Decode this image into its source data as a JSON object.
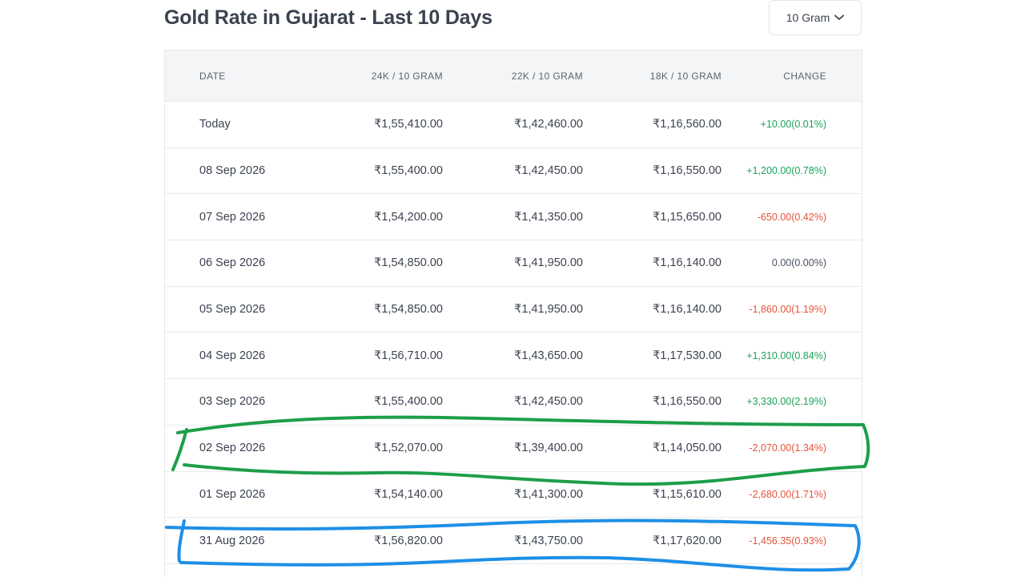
{
  "title": "Gold Rate in Gujarat - Last 10 Days",
  "unit_selector": {
    "selected": "10 Gram",
    "icon": "chevron-down-icon"
  },
  "table": {
    "headers": {
      "date": "DATE",
      "k24": "24K / 10 GRAM",
      "k22": "22K / 10 GRAM",
      "k18": "18K / 10 GRAM",
      "change": "CHANGE"
    },
    "rows": [
      {
        "date": "Today",
        "k24": "₹1,55,410.00",
        "k22": "₹1,42,460.00",
        "k18": "₹1,16,560.00",
        "change": "+10.00(0.01%)",
        "trend": "pos"
      },
      {
        "date": "08 Sep 2026",
        "k24": "₹1,55,400.00",
        "k22": "₹1,42,450.00",
        "k18": "₹1,16,550.00",
        "change": "+1,200.00(0.78%)",
        "trend": "pos"
      },
      {
        "date": "07 Sep 2026",
        "k24": "₹1,54,200.00",
        "k22": "₹1,41,350.00",
        "k18": "₹1,15,650.00",
        "change": "-650.00(0.42%)",
        "trend": "neg"
      },
      {
        "date": "06 Sep 2026",
        "k24": "₹1,54,850.00",
        "k22": "₹1,41,950.00",
        "k18": "₹1,16,140.00",
        "change": "0.00(0.00%)",
        "trend": "zero"
      },
      {
        "date": "05 Sep 2026",
        "k24": "₹1,54,850.00",
        "k22": "₹1,41,950.00",
        "k18": "₹1,16,140.00",
        "change": "-1,860.00(1.19%)",
        "trend": "neg"
      },
      {
        "date": "04 Sep 2026",
        "k24": "₹1,56,710.00",
        "k22": "₹1,43,650.00",
        "k18": "₹1,17,530.00",
        "change": "+1,310.00(0.84%)",
        "trend": "pos"
      },
      {
        "date": "03 Sep 2026",
        "k24": "₹1,55,400.00",
        "k22": "₹1,42,450.00",
        "k18": "₹1,16,550.00",
        "change": "+3,330.00(2.19%)",
        "trend": "pos"
      },
      {
        "date": "02 Sep 2026",
        "k24": "₹1,52,070.00",
        "k22": "₹1,39,400.00",
        "k18": "₹1,14,050.00",
        "change": "-2,070.00(1.34%)",
        "trend": "neg"
      },
      {
        "date": "01 Sep 2026",
        "k24": "₹1,54,140.00",
        "k22": "₹1,41,300.00",
        "k18": "₹1,15,610.00",
        "change": "-2,680.00(1.71%)",
        "trend": "neg"
      },
      {
        "date": "31 Aug 2026",
        "k24": "₹1,56,820.00",
        "k22": "₹1,43,750.00",
        "k18": "₹1,17,620.00",
        "change": "-1,456.35(0.93%)",
        "trend": "neg"
      }
    ]
  },
  "colors": {
    "positive": "#1aa35b",
    "negative": "#e4543c",
    "annotation_green": "#1e9e4a",
    "annotation_blue": "#1e8fe6"
  }
}
